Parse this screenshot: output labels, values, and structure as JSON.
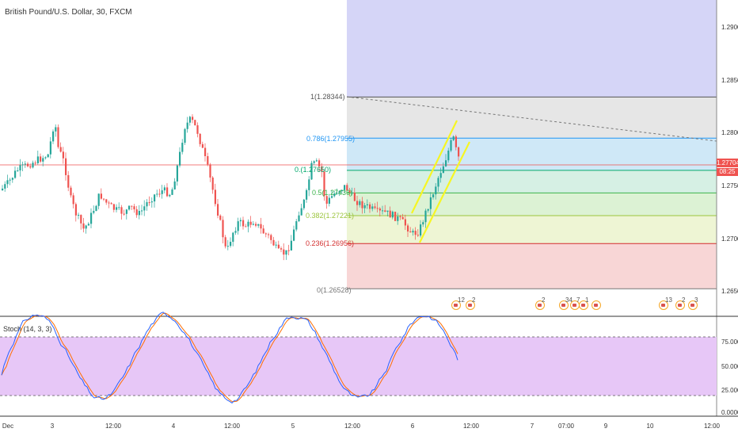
{
  "symbol": {
    "title": "British Pound/U.S. Dollar, 30, FXCM"
  },
  "fib_levels": [
    {
      "label": "1(1.28344)",
      "price": 1.28344,
      "color": "#555555",
      "fill": "#e6e6e6"
    },
    {
      "label": "0.786(1.27955)",
      "price": 1.27955,
      "color": "#2196f3",
      "fill": "#cfe8f7"
    },
    {
      "label": "0.(1.27650)",
      "price": 1.2765,
      "color": "#00a86b",
      "fill": "#d6f0e4"
    },
    {
      "label": "0.5(1.27436)",
      "price": 1.27436,
      "color": "#3cb44b",
      "fill": "#dcf2d4"
    },
    {
      "label": "0.382(1.27221)",
      "price": 1.27221,
      "color": "#9bc53d",
      "fill": "#eef5d4"
    },
    {
      "label": "0.236(1.26956)",
      "price": 1.26956,
      "color": "#d32f2f",
      "fill": "#f8d6d6"
    },
    {
      "label": "0(1.26528)",
      "price": 1.26528,
      "color": "#777777",
      "fill": null
    }
  ],
  "price_axis": {
    "ticks": [
      "1.29000",
      "1.28500",
      "1.28000",
      "1.27500",
      "1.27000",
      "1.26500"
    ],
    "last_price": "1.27704",
    "countdown": "08:25"
  },
  "stoch": {
    "label": "Stoch (14, 3, 3)",
    "ticks": [
      "75.0000",
      "50.0000",
      "25.0000",
      "0.0000"
    ],
    "upper_band": 80,
    "lower_band": 20,
    "fill_color": "#e7c7f7",
    "k_color": "#2962ff",
    "d_color": "#ff6d00"
  },
  "time_axis": {
    "ticks": [
      "Dec",
      "3",
      "12:00",
      "4",
      "12:00",
      "5",
      "12:00",
      "6",
      "12:00",
      "7",
      "07:00",
      "9",
      "10",
      "12:00"
    ]
  },
  "events": [
    {
      "count": "12"
    },
    {
      "count": "2"
    },
    {
      "count": "2"
    },
    {
      "count": "34"
    },
    {
      "count": "7"
    },
    {
      "count": "1"
    },
    {
      "count": ""
    },
    {
      "count": "13"
    },
    {
      "count": "2"
    },
    {
      "count": "3"
    }
  ],
  "colors": {
    "up_candle": "#26a69a",
    "down_candle": "#ef5350",
    "projection_zone": "#d5d5f7",
    "channel": "#f6f624",
    "price_line": "#ef5350"
  }
}
